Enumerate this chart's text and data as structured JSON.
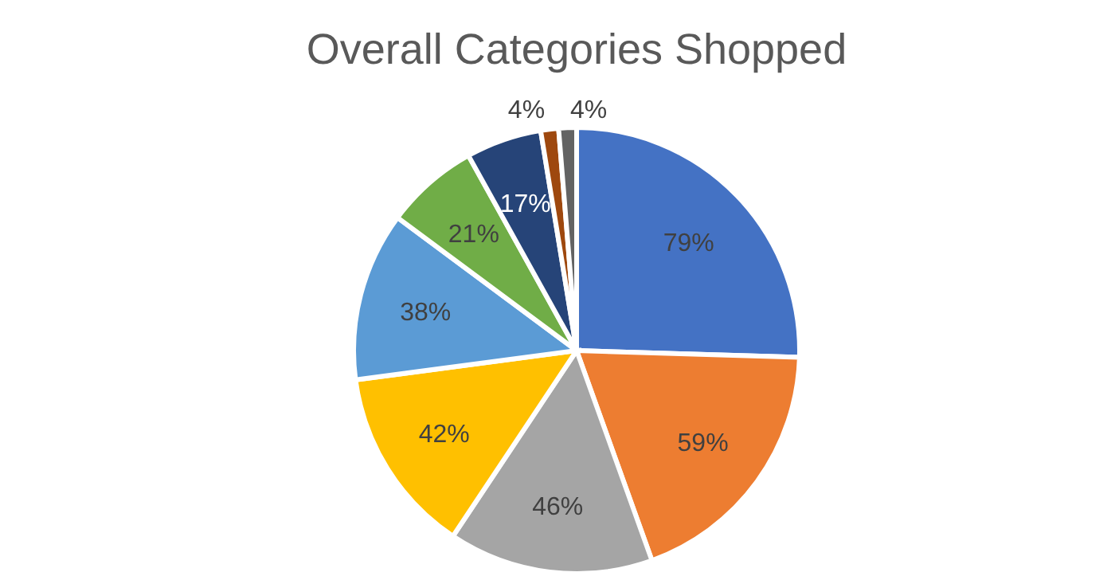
{
  "chart_data": {
    "type": "pie",
    "title": "Overall Categories Shopped",
    "categories": [
      null,
      null,
      null,
      null,
      null,
      null,
      null,
      null,
      null
    ],
    "values": [
      79,
      59,
      46,
      42,
      38,
      21,
      17,
      4,
      4
    ],
    "value_labels": [
      "79%",
      "59%",
      "46%",
      "42%",
      "38%",
      "21%",
      "17%",
      "4%",
      "4%"
    ],
    "colors": [
      "#4472c4",
      "#ed7d31",
      "#a5a5a5",
      "#ffc000",
      "#5b9bd5",
      "#70ad47",
      "#264478",
      "#9e480e",
      "#636363"
    ]
  }
}
